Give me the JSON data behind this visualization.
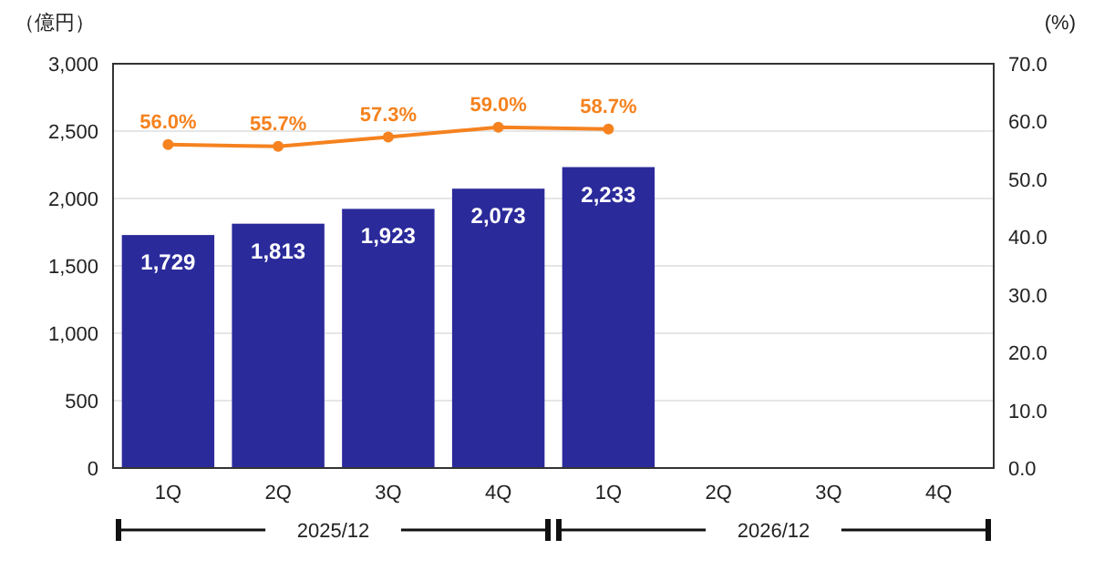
{
  "chart_data": {
    "type": "bar",
    "ylabel": "（億円）",
    "y2label": "(%)",
    "categories": [
      "1Q",
      "2Q",
      "3Q",
      "4Q",
      "1Q",
      "2Q",
      "3Q",
      "4Q"
    ],
    "series": [
      {
        "color": "#2b2a9b",
        "values": [
          1729,
          1813,
          1923,
          2073,
          2233,
          null,
          null,
          null
        ],
        "value_labels": [
          "1,729",
          "1,813",
          "1,923",
          "2,073",
          "2,233",
          null,
          null,
          null
        ]
      },
      {
        "type": "line",
        "axis": "y2",
        "color": "#f5821f",
        "marker": "circle",
        "line_style": "solid",
        "values": [
          56.0,
          55.7,
          57.3,
          59.0,
          58.7,
          null,
          null,
          null
        ],
        "value_labels": [
          "56.0%",
          "55.7%",
          "57.3%",
          "59.0%",
          "58.7%",
          null,
          null,
          null
        ]
      }
    ],
    "ylim": [
      0,
      3000
    ],
    "yticks": [
      {
        "value": 0,
        "label": "0"
      },
      {
        "value": 500,
        "label": "500"
      },
      {
        "value": 1000,
        "label": "1,000"
      },
      {
        "value": 1500,
        "label": "1,500"
      },
      {
        "value": 2000,
        "label": "2,000"
      },
      {
        "value": 2500,
        "label": "2,500"
      },
      {
        "value": 3000,
        "label": "3,000"
      }
    ],
    "y2lim": [
      0,
      70
    ],
    "y2ticks": [
      {
        "value": 0,
        "label": "0.0"
      },
      {
        "value": 10,
        "label": "10.0"
      },
      {
        "value": 20,
        "label": "20.0"
      },
      {
        "value": 30,
        "label": "30.0"
      },
      {
        "value": 40,
        "label": "40.0"
      },
      {
        "value": 50,
        "label": "50.0"
      },
      {
        "value": 60,
        "label": "60.0"
      },
      {
        "value": 70,
        "label": "70.0"
      }
    ],
    "grid": "y",
    "annotations": [
      "2025/12",
      "2026/12"
    ]
  }
}
